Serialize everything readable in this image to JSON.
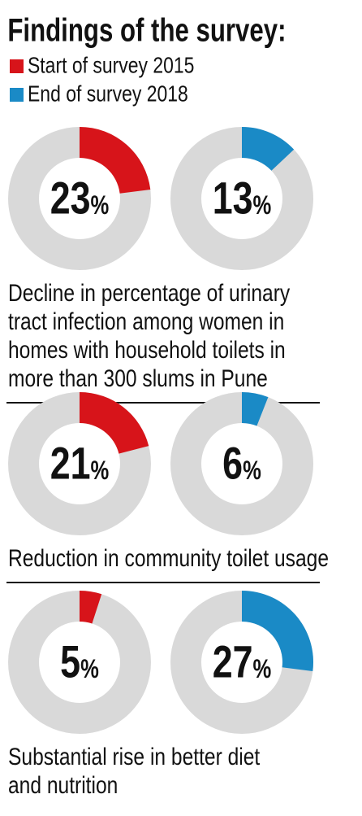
{
  "title": "Findings of the survey:",
  "legend": [
    {
      "name": "Start of survey 2015",
      "color": "#d7141a"
    },
    {
      "name": "End of survey 2018",
      "color": "#1a8ac6"
    }
  ],
  "chart_data": [
    {
      "type": "donut",
      "values": [
        23,
        13
      ],
      "value_labels": [
        "23%",
        "13%"
      ],
      "caption": [
        "Decline in percentage of urinary",
        "tract infection among women in",
        "homes with household toilets in",
        "more than 300 slums in Pune"
      ]
    },
    {
      "type": "donut",
      "values": [
        21,
        6
      ],
      "value_labels": [
        "21%",
        "6%"
      ],
      "caption": [
        "Reduction in community toilet usage"
      ]
    },
    {
      "type": "donut",
      "values": [
        5,
        27
      ],
      "value_labels": [
        "5%",
        "27%"
      ],
      "caption": [
        "Substantial rise in better diet",
        "and nutrition"
      ]
    }
  ]
}
